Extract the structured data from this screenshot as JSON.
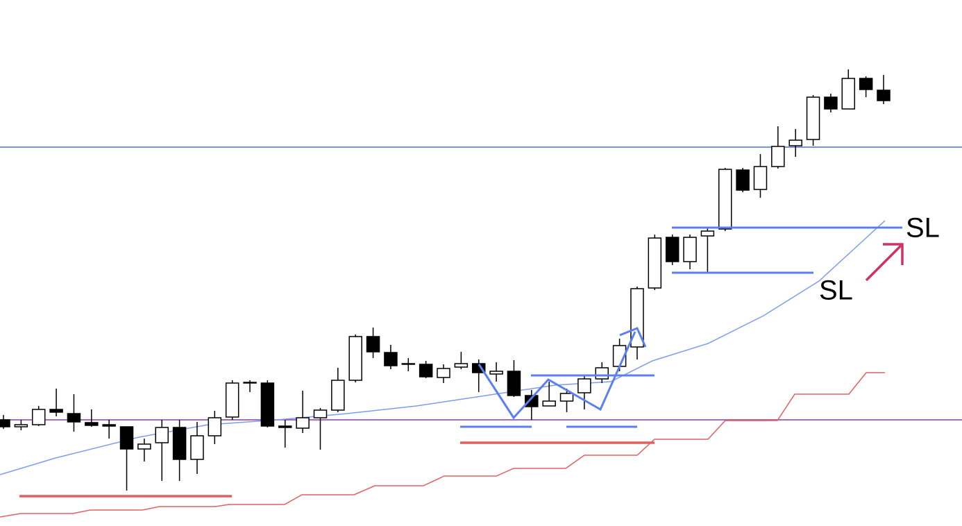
{
  "chart_data": {
    "type": "candlestick",
    "ylim": [
      0,
      758
    ],
    "up_color": "#ffffff",
    "down_color": "#000000",
    "categories": [
      null,
      null,
      null,
      null,
      null,
      null,
      null,
      null,
      null,
      null,
      null,
      null,
      null,
      null,
      null,
      null,
      null,
      null,
      null,
      null,
      null,
      null,
      null,
      null,
      null,
      null,
      null,
      null,
      null,
      null,
      null,
      null,
      null,
      null,
      null,
      null,
      null,
      null,
      null,
      null,
      null,
      null,
      null,
      null,
      null,
      null,
      null,
      null,
      null,
      null,
      null
    ],
    "open": [
      153,
      143,
      146,
      168,
      162,
      149,
      146,
      143,
      111,
      120,
      142,
      96,
      130,
      157,
      206,
      206,
      144,
      141,
      156,
      167,
      210,
      273,
      250,
      234,
      233,
      214,
      229,
      234,
      219,
      223,
      188,
      173,
      180,
      192,
      212,
      230,
      258,
      343,
      416,
      381,
      418,
      428,
      513,
      485,
      518,
      548,
      557,
      618,
      601,
      645,
      628
    ],
    "high": [
      160,
      153,
      173,
      198,
      190,
      168,
      153,
      143,
      126,
      153,
      153,
      150,
      166,
      210,
      210,
      210,
      153,
      195,
      170,
      228,
      276,
      286,
      261,
      242,
      238,
      233,
      251,
      240,
      236,
      239,
      196,
      208,
      198,
      216,
      236,
      270,
      345,
      420,
      420,
      420,
      430,
      516,
      516,
      536,
      576,
      572,
      621,
      623,
      658,
      648,
      650
    ],
    "low": [
      140,
      138,
      144,
      158,
      136,
      143,
      126,
      51,
      93,
      65,
      65,
      75,
      118,
      153,
      193,
      142,
      113,
      134,
      110,
      164,
      207,
      242,
      226,
      223,
      213,
      206,
      226,
      193,
      208,
      186,
      153,
      173,
      164,
      168,
      206,
      223,
      240,
      340,
      376,
      370,
      366,
      425,
      481,
      473,
      515,
      532,
      548,
      596,
      601,
      618,
      608
    ],
    "close": [
      143,
      146,
      168,
      164,
      150,
      145,
      144,
      111,
      118,
      142,
      96,
      130,
      156,
      206,
      207,
      144,
      142,
      156,
      167,
      210,
      273,
      251,
      231,
      233,
      215,
      227,
      234,
      221,
      223,
      188,
      172,
      180,
      191,
      212,
      228,
      260,
      342,
      415,
      381,
      416,
      425,
      514,
      484,
      518,
      547,
      556,
      618,
      601,
      645,
      629,
      613
    ],
    "annotations": [
      "SL",
      "SL"
    ]
  }
}
